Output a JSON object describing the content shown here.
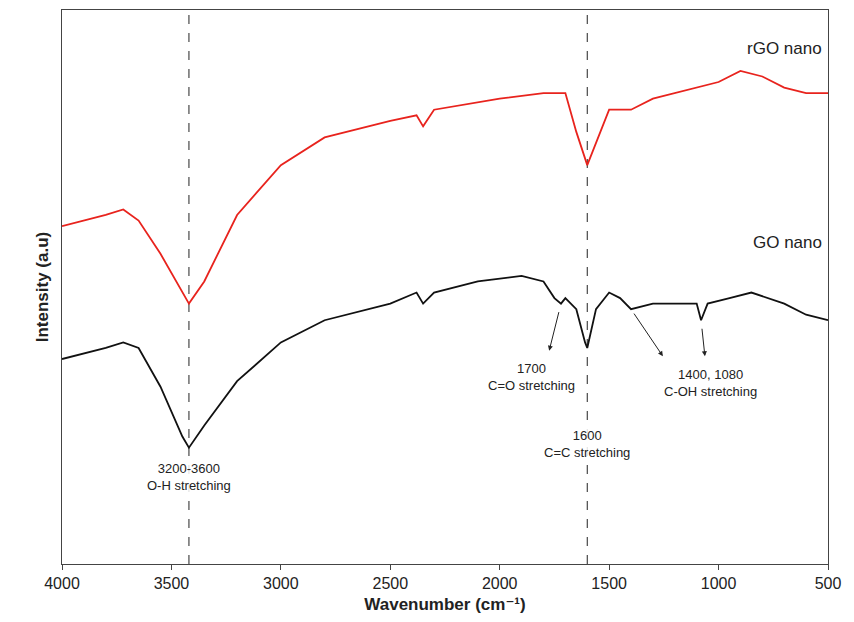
{
  "chart_data": {
    "type": "line",
    "x_label": "Wavenumber (cm⁻¹)",
    "y_label": "Intensity (a.u)",
    "xlim": [
      4000,
      500
    ],
    "xticks": [
      4000,
      3500,
      3000,
      2500,
      2000,
      1500,
      1000,
      500
    ],
    "ylim": [
      0,
      100
    ],
    "yticks": [],
    "tick_labels": "x",
    "grid": false,
    "vlines": [
      3420,
      1600
    ],
    "series": [
      {
        "name": "rGO nano",
        "color": "#e8231d",
        "label_at": [
          520,
          91
        ],
        "x": [
          4000,
          3800,
          3720,
          3650,
          3550,
          3450,
          3420,
          3350,
          3200,
          3000,
          2800,
          2500,
          2380,
          2350,
          2300,
          2000,
          1800,
          1700,
          1650,
          1600,
          1550,
          1500,
          1450,
          1400,
          1300,
          1100,
          1000,
          900,
          800,
          700,
          600,
          500
        ],
        "values": [
          61,
          63,
          64,
          62,
          56,
          49,
          47,
          51,
          63,
          72,
          77,
          80,
          81,
          79,
          82,
          84,
          85,
          85,
          78,
          72,
          77,
          82,
          82,
          82,
          84,
          86,
          87,
          89,
          88,
          86,
          85,
          85
        ]
      },
      {
        "name": "GO nano",
        "color": "#111111",
        "label_at": [
          520,
          56
        ],
        "x": [
          4000,
          3800,
          3720,
          3650,
          3550,
          3450,
          3420,
          3350,
          3200,
          3000,
          2800,
          2500,
          2380,
          2350,
          2300,
          2100,
          1900,
          1800,
          1750,
          1720,
          1700,
          1650,
          1610,
          1600,
          1560,
          1500,
          1450,
          1400,
          1300,
          1200,
          1100,
          1080,
          1050,
          950,
          850,
          700,
          600,
          500
        ],
        "values": [
          37,
          39,
          40,
          39,
          32,
          23,
          21,
          25,
          33,
          40,
          44,
          47,
          49,
          47,
          49,
          51,
          52,
          51,
          48,
          47,
          48,
          46,
          40,
          39,
          46,
          49,
          48,
          46,
          47,
          47,
          47,
          44,
          47,
          48,
          49,
          47,
          45,
          44
        ]
      }
    ],
    "annotations": [
      {
        "text": [
          "3200-3600",
          "O-H stretching"
        ],
        "x": 3420,
        "y": 19
      },
      {
        "text": [
          "1600",
          "C=C stretching"
        ],
        "x": 1600,
        "y": 25
      },
      {
        "text": [
          "1700",
          "C=O stretching"
        ],
        "x": 1855,
        "y": 37,
        "arrows": [
          [
            1720,
            47
          ]
        ]
      },
      {
        "text": [
          "1400, 1080",
          "C-OH stretching"
        ],
        "x": 1036,
        "y": 36,
        "arrows": [
          [
            1400,
            46
          ],
          [
            1080,
            44
          ]
        ]
      }
    ]
  }
}
